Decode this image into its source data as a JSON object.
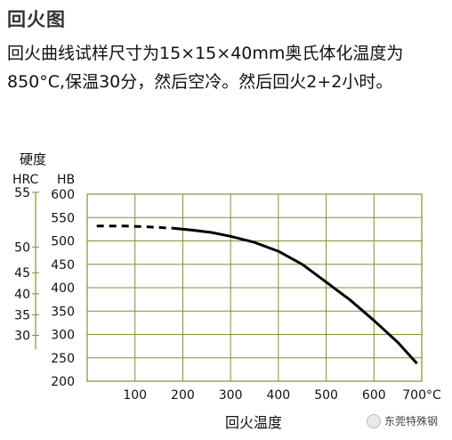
{
  "title": "回火图",
  "description": "回火曲线试样尺寸为15×15×40mm奥氏体化温度为850°C,保温30分，然后空冷。然后回火2+2小时。",
  "watermark": "东莞特殊钢",
  "chart_data": {
    "type": "line",
    "xlabel": "回火温度",
    "ylabel_top": "硬度",
    "ylabel_hrc": "HRC",
    "ylabel_hb": "HB",
    "x_ticks": [
      "100",
      "200",
      "300",
      "400",
      "500",
      "600",
      "700°C"
    ],
    "x_tick_values": [
      100,
      200,
      300,
      400,
      500,
      600,
      700
    ],
    "xlim": [
      0,
      700
    ],
    "hb_ticks": [
      "200",
      "250",
      "300",
      "350",
      "400",
      "450",
      "500",
      "550",
      "600"
    ],
    "hb_tick_values": [
      200,
      250,
      300,
      350,
      400,
      450,
      500,
      550,
      600
    ],
    "ylim": [
      200,
      600
    ],
    "hrc_ticks": [
      {
        "label": "30",
        "hb": 298
      },
      {
        "label": "35",
        "hb": 342
      },
      {
        "label": "40",
        "hb": 387
      },
      {
        "label": "45",
        "hb": 432
      },
      {
        "label": "50",
        "hb": 487
      },
      {
        "label": "55",
        "hb": 604
      }
    ],
    "grid": true,
    "series": [
      {
        "style": "dashed",
        "x": [
          20,
          80,
          130,
          180
        ],
        "y": [
          532,
          532,
          530,
          527
        ]
      },
      {
        "style": "solid",
        "x": [
          180,
          220,
          260,
          300,
          350,
          400,
          450,
          500,
          550,
          600,
          650,
          690
        ],
        "y": [
          527,
          523,
          518,
          510,
          497,
          478,
          450,
          412,
          374,
          330,
          283,
          238
        ]
      }
    ]
  }
}
